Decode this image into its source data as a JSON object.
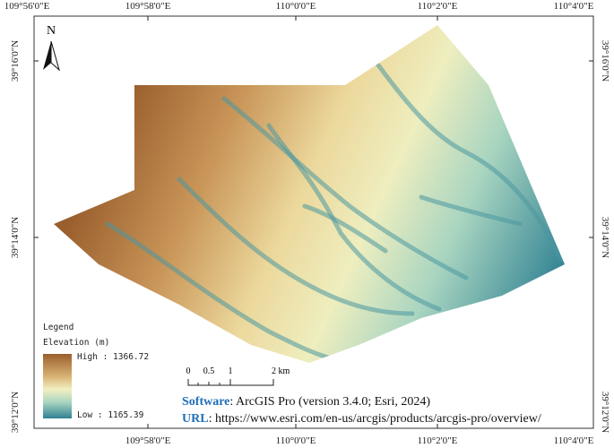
{
  "map": {
    "north_label": "N",
    "longitude_labels_top": [
      "109°56'0\"E",
      "109°58'0\"E",
      "110°0'0\"E",
      "110°2'0\"E",
      "110°4'0\"E"
    ],
    "longitude_labels_bottom": [
      "109°58'0\"E",
      "110°0'0\"E",
      "110°2'0\"E",
      "110°4'0\"E"
    ],
    "latitude_labels_left": [
      "39°16'0\"N",
      "39°14'0\"N",
      "39°12'0\"N"
    ],
    "latitude_labels_right": [
      "39°16'0\"N",
      "39°14'0\"N",
      "39°12'0\"N"
    ]
  },
  "legend": {
    "title": "Legend",
    "layer": "Elevation (m)",
    "high": "High : 1366.72",
    "low": "Low : 1165.39"
  },
  "scale_bar": {
    "labels": [
      "0",
      "0.5",
      "1",
      "2 km"
    ]
  },
  "credits": {
    "software_label": "Software",
    "software_text": ": ArcGIS Pro (version 3.4.0; Esri, 2024)",
    "url_label": "URL",
    "url_text": ": https://www.esri.com/en-us/arcgis/products/arcgis-pro/overview/"
  }
}
